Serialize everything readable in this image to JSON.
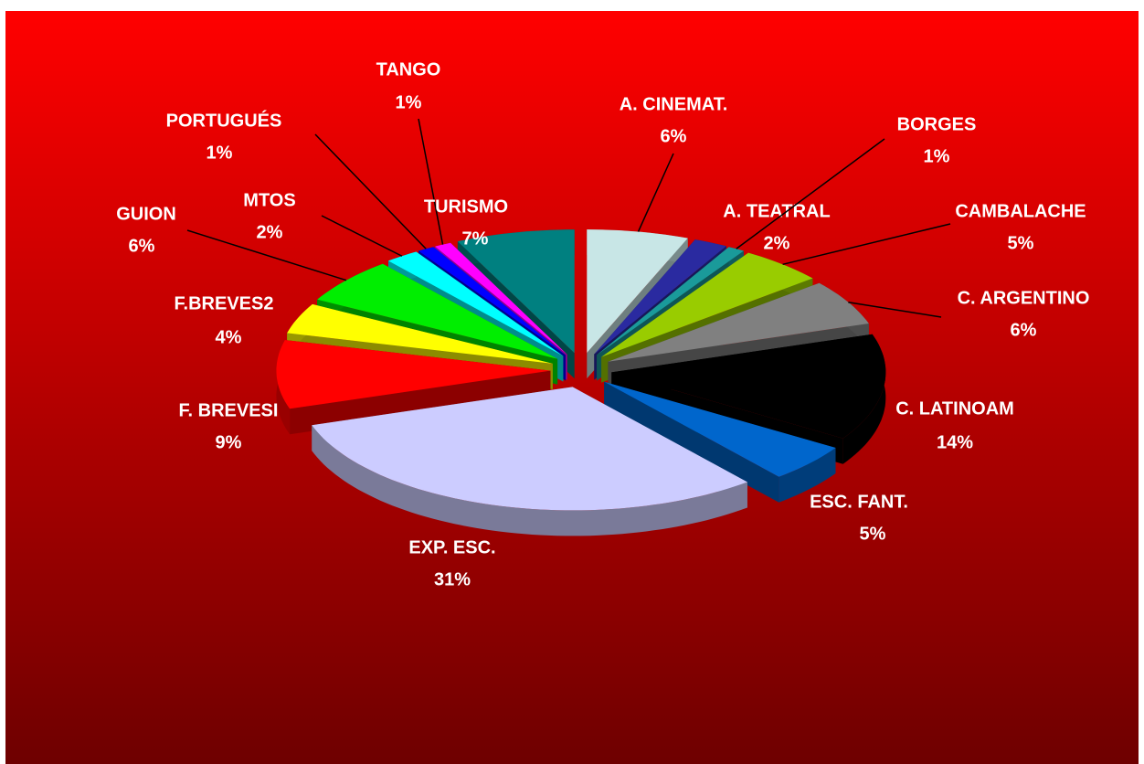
{
  "chart_data": {
    "type": "pie3d",
    "categories": [
      "A. CINEMAT.",
      "A. TEATRAL",
      "BORGES",
      "CAMBALACHE",
      "C. ARGENTINO",
      "C. LATINOAM",
      "ESC. FANT.",
      "EXP. ESC.",
      "F. BREVESI",
      "F.BREVES2",
      "GUION",
      "MTOS",
      "PORTUGUÉS",
      "TANGO",
      "TURISMO"
    ],
    "values": [
      6,
      2,
      1,
      5,
      6,
      14,
      5,
      31,
      9,
      4,
      6,
      2,
      1,
      1,
      7
    ],
    "value_labels": [
      "6%",
      "2%",
      "1%",
      "5%",
      "6%",
      "14%",
      "5%",
      "31%",
      "9%",
      "4%",
      "6%",
      "2%",
      "1%",
      "1%",
      "7%"
    ],
    "colors": [
      "#c8e6e6",
      "#2a2aa0",
      "#1a9a9a",
      "#99cc00",
      "#808080",
      "#000000",
      "#0066cc",
      "#ccccff",
      "#ff0000",
      "#ffff00",
      "#00ee00",
      "#00ffff",
      "#0000ff",
      "#ff00ff",
      "#008080"
    ]
  }
}
